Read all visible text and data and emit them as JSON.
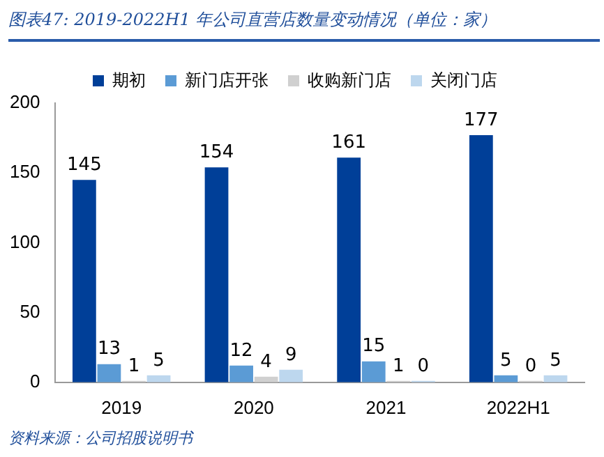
{
  "chart_data": {
    "type": "bar",
    "title": "图表47: 2019-2022H1 年公司直营店数量变动情况（单位：家）",
    "categories": [
      "2019",
      "2020",
      "2021",
      "2022H1"
    ],
    "series": [
      {
        "name": "期初",
        "color": "#003f98",
        "values": [
          145,
          154,
          161,
          177
        ]
      },
      {
        "name": "新门店开张",
        "color": "#5b9bd5",
        "values": [
          13,
          12,
          15,
          5
        ]
      },
      {
        "name": "收购新门店",
        "color": "#d0d0d0",
        "values": [
          1,
          4,
          1,
          0
        ]
      },
      {
        "name": "关闭门店",
        "color": "#bdd7ee",
        "values": [
          5,
          9,
          0,
          5
        ]
      }
    ],
    "ylim": [
      0,
      200
    ],
    "yticks": [
      0,
      50,
      100,
      150,
      200
    ],
    "grid": false,
    "legend": "top",
    "data_labels": true,
    "annotations": [
      "资料来源：公司招股说明书"
    ]
  }
}
